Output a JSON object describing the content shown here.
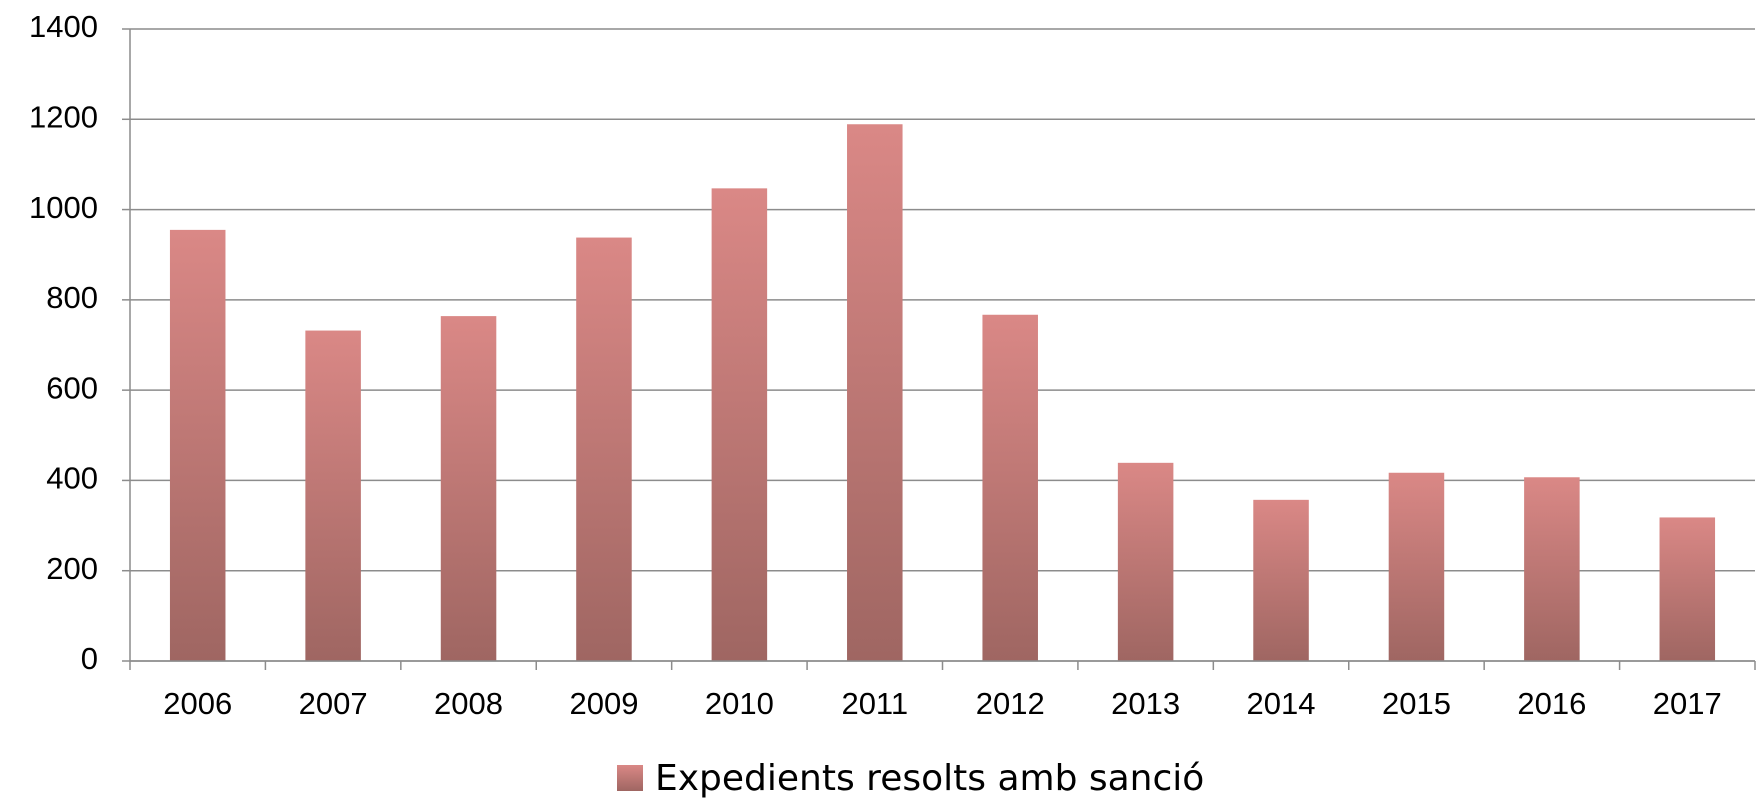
{
  "chart_data": {
    "type": "bar",
    "categories": [
      "2006",
      "2007",
      "2008",
      "2009",
      "2010",
      "2011",
      "2012",
      "2013",
      "2014",
      "2015",
      "2016",
      "2017"
    ],
    "series": [
      {
        "name": "Expedients resolts amb sanció",
        "color": "#c77b78",
        "values": [
          955,
          732,
          764,
          938,
          1047,
          1189,
          767,
          439,
          357,
          417,
          407,
          318
        ]
      }
    ],
    "ylim": [
      0,
      1400
    ],
    "yticks": [
      0,
      200,
      400,
      600,
      800,
      1000,
      1200,
      1400
    ],
    "grid": true,
    "legend": "bottom"
  }
}
